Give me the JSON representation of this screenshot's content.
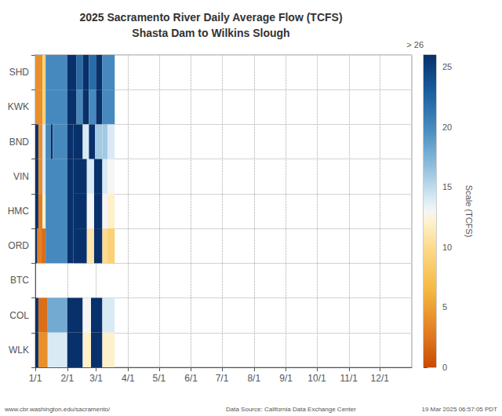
{
  "chart_data": {
    "type": "heatmap",
    "title": "2025 Sacramento River Daily Average Flow (TCFS)",
    "subtitle": "Shasta Dam to Wilkins Slough",
    "categories": [
      "SHD",
      "KWK",
      "BND",
      "VIN",
      "HMC",
      "ORD",
      "BTC",
      "COL",
      "WLK"
    ],
    "xlim": [
      0,
      365
    ],
    "xticks": [
      {
        "value": 0,
        "label": "1/1"
      },
      {
        "value": 31,
        "label": "2/1"
      },
      {
        "value": 59,
        "label": "3/1"
      },
      {
        "value": 90,
        "label": "4/1"
      },
      {
        "value": 120,
        "label": "5/1"
      },
      {
        "value": 151,
        "label": "6/1"
      },
      {
        "value": 181,
        "label": "7/1"
      },
      {
        "value": 212,
        "label": "8/1"
      },
      {
        "value": 243,
        "label": "9/1"
      },
      {
        "value": 273,
        "label": "10/1"
      },
      {
        "value": 304,
        "label": "11/1"
      },
      {
        "value": 334,
        "label": "12/1"
      }
    ],
    "grid": true,
    "segments": {
      "SHD": [
        [
          0,
          7,
          4
        ],
        [
          7,
          10,
          9
        ],
        [
          10,
          31,
          20
        ],
        [
          31,
          40,
          26
        ],
        [
          40,
          46,
          22
        ],
        [
          46,
          52,
          26
        ],
        [
          52,
          59,
          22
        ],
        [
          59,
          65,
          26
        ],
        [
          65,
          77,
          20
        ]
      ],
      "KWK": [
        [
          0,
          7,
          4
        ],
        [
          7,
          10,
          9
        ],
        [
          10,
          31,
          20
        ],
        [
          31,
          40,
          26
        ],
        [
          40,
          46,
          20
        ],
        [
          46,
          52,
          26
        ],
        [
          52,
          59,
          20
        ],
        [
          59,
          65,
          26
        ],
        [
          65,
          77,
          20
        ]
      ],
      "BND": [
        [
          0,
          3,
          26
        ],
        [
          3,
          7,
          4
        ],
        [
          7,
          10,
          14
        ],
        [
          10,
          15,
          20
        ],
        [
          15,
          17,
          26
        ],
        [
          17,
          31,
          20
        ],
        [
          31,
          37,
          26
        ],
        [
          37,
          46,
          26
        ],
        [
          46,
          52,
          14
        ],
        [
          52,
          58,
          26
        ],
        [
          58,
          65,
          16
        ],
        [
          65,
          70,
          16
        ],
        [
          70,
          77,
          14
        ]
      ],
      "VIN": [
        [
          0,
          3,
          26
        ],
        [
          3,
          7,
          4
        ],
        [
          7,
          10,
          14
        ],
        [
          10,
          31,
          20
        ],
        [
          31,
          37,
          26
        ],
        [
          37,
          50,
          26
        ],
        [
          50,
          57,
          14
        ],
        [
          57,
          65,
          26
        ],
        [
          65,
          70,
          14
        ],
        [
          70,
          77,
          13
        ]
      ],
      "HMC": [
        [
          0,
          3,
          26
        ],
        [
          3,
          7,
          3
        ],
        [
          7,
          10,
          12
        ],
        [
          10,
          31,
          20
        ],
        [
          31,
          37,
          26
        ],
        [
          37,
          50,
          26
        ],
        [
          50,
          57,
          13
        ],
        [
          57,
          65,
          26
        ],
        [
          65,
          70,
          13
        ],
        [
          70,
          77,
          12
        ]
      ],
      "ORD": [
        [
          0,
          2,
          26
        ],
        [
          2,
          6,
          3
        ],
        [
          6,
          10,
          2
        ],
        [
          10,
          31,
          20
        ],
        [
          31,
          37,
          26
        ],
        [
          37,
          50,
          26
        ],
        [
          50,
          57,
          11
        ],
        [
          57,
          65,
          26
        ],
        [
          65,
          70,
          10
        ],
        [
          70,
          77,
          9
        ]
      ],
      "BTC": [],
      "COL": [
        [
          0,
          3,
          26
        ],
        [
          3,
          12,
          2
        ],
        [
          12,
          31,
          18
        ],
        [
          31,
          46,
          26
        ],
        [
          46,
          54,
          13
        ],
        [
          54,
          65,
          26
        ],
        [
          65,
          77,
          14
        ]
      ],
      "WLK": [
        [
          0,
          3,
          26
        ],
        [
          3,
          12,
          4
        ],
        [
          12,
          31,
          14
        ],
        [
          31,
          46,
          26
        ],
        [
          46,
          54,
          12
        ],
        [
          54,
          65,
          26
        ],
        [
          65,
          77,
          12
        ]
      ]
    },
    "colorbar": {
      "label": "Scale (TCFS)",
      "range": [
        0,
        26
      ],
      "ticks": [
        0,
        5,
        10,
        15,
        20,
        25
      ],
      "max_label": "> 26",
      "colors": [
        [
          0.0,
          "#c84b00"
        ],
        [
          0.1,
          "#e07820"
        ],
        [
          0.25,
          "#f5b942"
        ],
        [
          0.38,
          "#fdd98a"
        ],
        [
          0.46,
          "#fef0c8"
        ],
        [
          0.5,
          "#f5f5f5"
        ],
        [
          0.54,
          "#d8eaf5"
        ],
        [
          0.64,
          "#92c0de"
        ],
        [
          0.76,
          "#4a8dc0"
        ],
        [
          0.88,
          "#1a5fa0"
        ],
        [
          1.0,
          "#08306b"
        ]
      ]
    },
    "annotations": [
      "www.cbr.washington.edu/sacramento/",
      "Data Source: California Data Exchange Center",
      "19 Mar 2025 06:57:05 PDT"
    ]
  }
}
